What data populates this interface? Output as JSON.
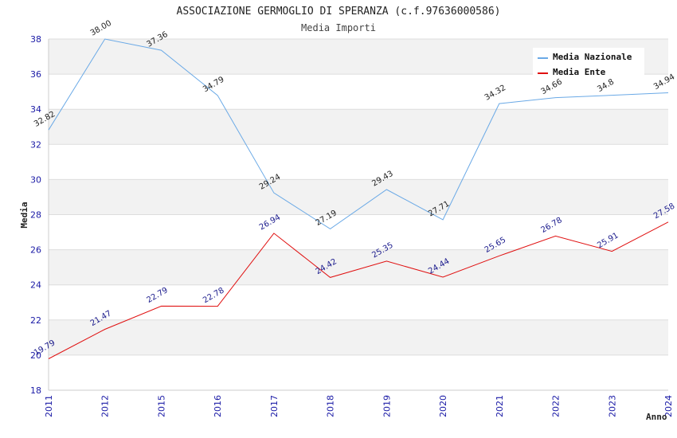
{
  "chart_data": {
    "type": "line",
    "title": "ASSOCIAZIONE GERMOGLIO DI SPERANZA (c.f.97636000586)",
    "subtitle": "Media Importi",
    "xlabel": "Anno",
    "ylabel": "Media",
    "categories": [
      "2011",
      "2012",
      "2015",
      "2016",
      "2017",
      "2018",
      "2019",
      "2020",
      "2021",
      "2022",
      "2023",
      "2024"
    ],
    "ylim": [
      18,
      38
    ],
    "yticks": [
      "18",
      "20",
      "22",
      "24",
      "26",
      "28",
      "30",
      "32",
      "34",
      "36",
      "38"
    ],
    "grid": true,
    "legend_position": "top-right",
    "series": [
      {
        "name": "Media Nazionale",
        "color": "#6aa9e6",
        "label_color": "#222222",
        "values": [
          32.82,
          38.0,
          37.36,
          34.79,
          29.24,
          27.19,
          29.43,
          27.71,
          34.32,
          34.66,
          34.8,
          34.94
        ],
        "labels": [
          "32.82",
          "38.00",
          "37.36",
          "34.79",
          "29.24",
          "27.19",
          "29.43",
          "27.71",
          "34.32",
          "34.66",
          "34.8",
          "34.94"
        ]
      },
      {
        "name": "Media Ente",
        "color": "#e01010",
        "label_color": "#1a1a8c",
        "values": [
          19.79,
          21.47,
          22.79,
          22.78,
          26.94,
          24.42,
          25.35,
          24.44,
          25.65,
          26.78,
          25.91,
          27.58
        ],
        "labels": [
          "19.79",
          "21.47",
          "22.79",
          "22.78",
          "26.94",
          "24.42",
          "25.35",
          "24.44",
          "25.65",
          "26.78",
          "25.91",
          "27.58"
        ]
      }
    ]
  }
}
